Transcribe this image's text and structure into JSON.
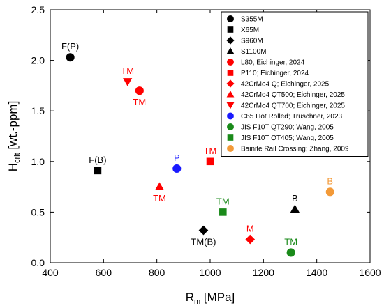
{
  "chart_data": {
    "type": "scatter",
    "xlabel": {
      "main": "R",
      "sub": "m",
      "rest": " [MPa]"
    },
    "ylabel": {
      "main": "H",
      "sub": "crit",
      "rest": " [wt.-ppm]"
    },
    "xlim": [
      400,
      1600
    ],
    "ylim": [
      0.0,
      2.5
    ],
    "xticks": [
      "400",
      "600",
      "800",
      "1000",
      "1200",
      "1400",
      "1600"
    ],
    "yticks": [
      "0.0",
      "0.5",
      "1.0",
      "1.5",
      "2.0",
      "2.5"
    ],
    "legend_position": "top-right",
    "colors": {
      "black": "#000000",
      "red": "#ff0000",
      "blue": "#1a1aff",
      "green": "#1a8a1a",
      "orange": "#f39a38"
    },
    "series": [
      {
        "name": "S355M",
        "marker": "circle",
        "color": "#000000",
        "points": [
          {
            "x": 475,
            "y": 2.03,
            "label": "F(P)",
            "label_pos": "above"
          }
        ]
      },
      {
        "name": "X65M",
        "marker": "square",
        "color": "#000000",
        "points": [
          {
            "x": 578,
            "y": 0.91,
            "label": "F(B)",
            "label_pos": "above"
          }
        ]
      },
      {
        "name": "S960M",
        "marker": "diamond",
        "color": "#000000",
        "points": [
          {
            "x": 975,
            "y": 0.32,
            "label": "TM(B)",
            "label_pos": "below"
          }
        ]
      },
      {
        "name": "S1100M",
        "marker": "triangle-up",
        "color": "#000000",
        "points": [
          {
            "x": 1318,
            "y": 0.53,
            "label": "B",
            "label_pos": "above"
          }
        ]
      },
      {
        "name": "L80; Eichinger, 2024",
        "marker": "circle",
        "color": "#ff0000",
        "points": [
          {
            "x": 735,
            "y": 1.7,
            "label": "TM",
            "label_pos": "below"
          }
        ]
      },
      {
        "name": "P110; Eichinger, 2024",
        "marker": "square",
        "color": "#ff0000",
        "points": [
          {
            "x": 1000,
            "y": 1.0,
            "label": "TM",
            "label_pos": "above"
          }
        ]
      },
      {
        "name": "42CrMo4 Q; Eichinger, 2025",
        "marker": "diamond",
        "color": "#ff0000",
        "points": [
          {
            "x": 1150,
            "y": 0.23,
            "label": "M",
            "label_pos": "above"
          }
        ]
      },
      {
        "name": "42CrMo4 QT500; Eichinger, 2025",
        "marker": "triangle-up",
        "color": "#ff0000",
        "points": [
          {
            "x": 810,
            "y": 0.75,
            "label": "TM",
            "label_pos": "below"
          }
        ]
      },
      {
        "name": "42CrMo4 QT700; Eichinger, 2025",
        "marker": "triangle-down",
        "color": "#ff0000",
        "points": [
          {
            "x": 690,
            "y": 1.79,
            "label": "TM",
            "label_pos": "above"
          }
        ]
      },
      {
        "name": "C65 Hot Rolled; Truschner, 2023",
        "marker": "circle",
        "color": "#1a1aff",
        "points": [
          {
            "x": 875,
            "y": 0.93,
            "label": "P",
            "label_pos": "above"
          }
        ]
      },
      {
        "name": "JIS F10T QT290; Wang, 2005",
        "marker": "circle",
        "color": "#1a8a1a",
        "points": [
          {
            "x": 1303,
            "y": 0.1,
            "label": "TM",
            "label_pos": "above"
          }
        ]
      },
      {
        "name": "JIS F10T QT405; Wang, 2005",
        "marker": "square",
        "color": "#1a8a1a",
        "points": [
          {
            "x": 1048,
            "y": 0.5,
            "label": "TM",
            "label_pos": "above"
          }
        ]
      },
      {
        "name": "Bainite Rail Crossing; Zhang, 2009",
        "marker": "circle",
        "color": "#f39a38",
        "points": [
          {
            "x": 1450,
            "y": 0.7,
            "label": "B",
            "label_pos": "above"
          }
        ]
      }
    ]
  }
}
